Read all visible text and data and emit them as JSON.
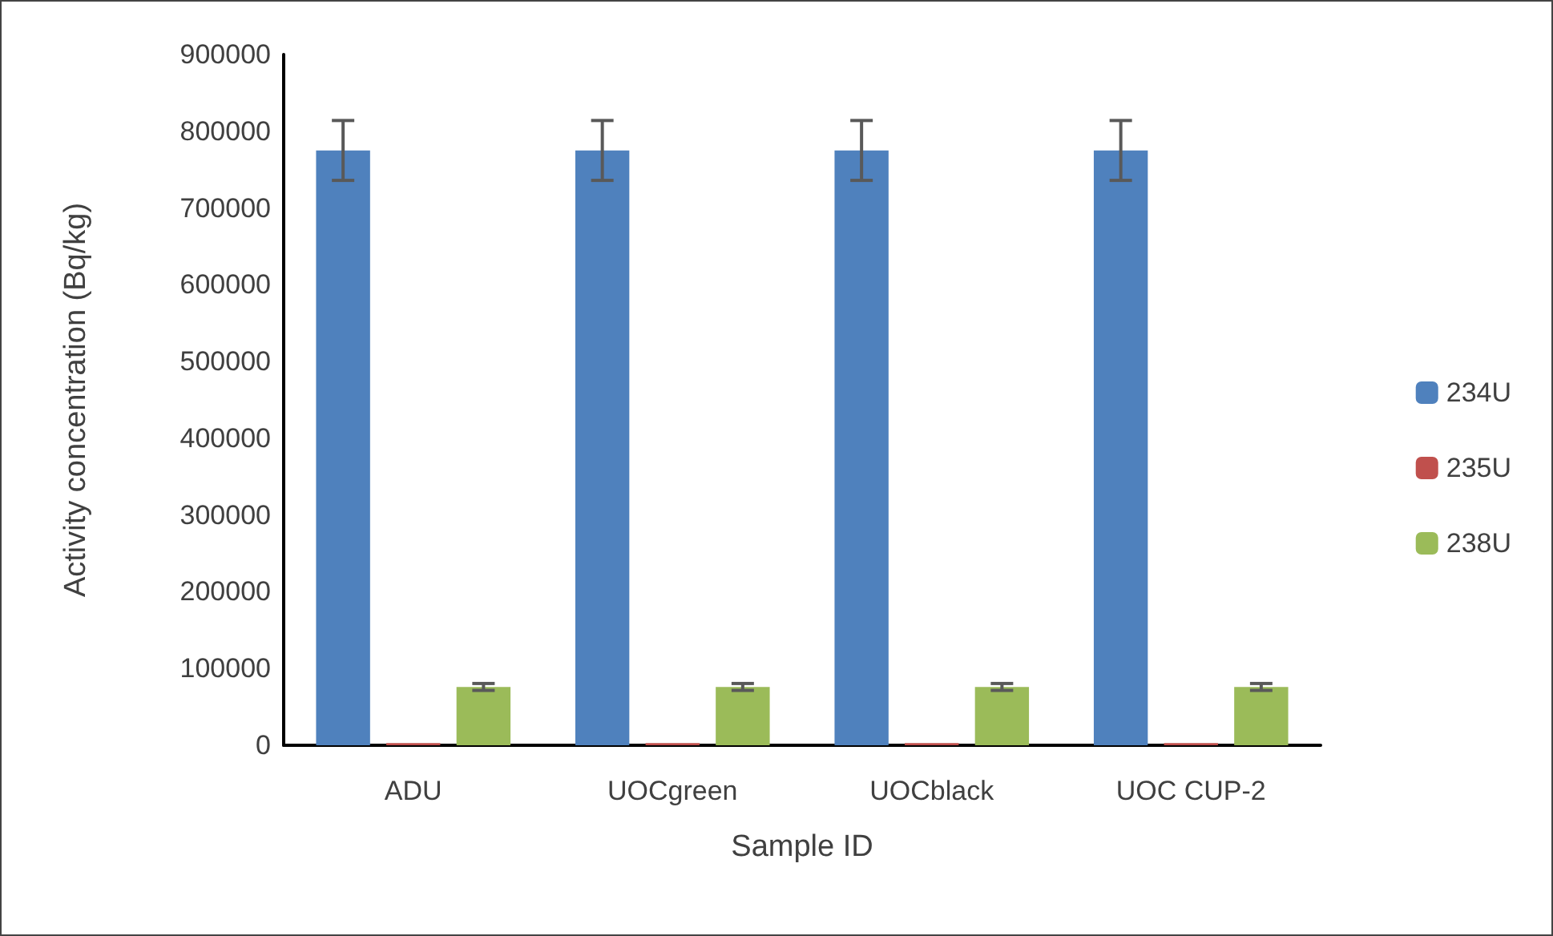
{
  "chart_data": {
    "type": "bar",
    "xlabel": "Sample ID",
    "ylabel": "Activity concentration (Bq/kg)",
    "categories": [
      "ADU",
      "UOCgreen",
      "UOCblack",
      "UOC CUP-2"
    ],
    "series": [
      {
        "name": "234U",
        "color": "#4f81bd",
        "values": [
          775000,
          775000,
          775000,
          775000
        ],
        "errors": [
          39000,
          39000,
          39000,
          39000
        ]
      },
      {
        "name": "235U",
        "color": "#c0504d",
        "values": [
          3000,
          3000,
          3000,
          3000
        ]
      },
      {
        "name": "238U",
        "color": "#9bbb59",
        "values": [
          76000,
          76000,
          76000,
          76000
        ],
        "errors": [
          4500,
          4500,
          4500,
          4500
        ]
      }
    ],
    "ylim": [
      0,
      900000
    ],
    "yticks": [
      0,
      100000,
      200000,
      300000,
      400000,
      500000,
      600000,
      700000,
      800000,
      900000
    ],
    "grid": false,
    "legend": "right"
  }
}
